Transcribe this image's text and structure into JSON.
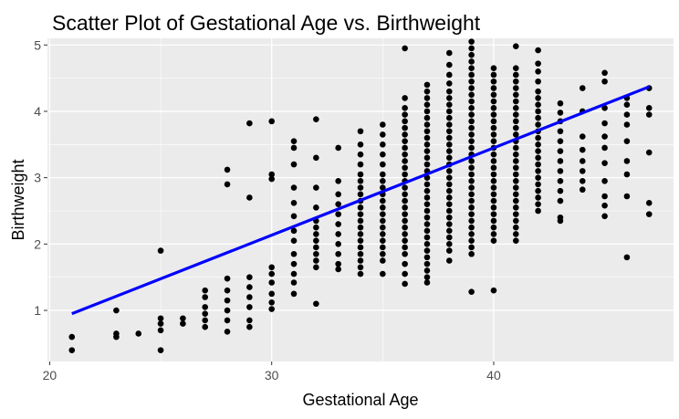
{
  "chart_data": {
    "type": "scatter",
    "title": "Scatter Plot of Gestational Age vs. Birthweight",
    "xlabel": "Gestational Age",
    "ylabel": "Birthweight",
    "xlim": [
      19.9,
      48.1
    ],
    "ylim": [
      0.23,
      5.1
    ],
    "xticks": [
      20,
      30,
      40
    ],
    "yticks": [
      1,
      2,
      3,
      4,
      5
    ],
    "grid": true,
    "panel_background": "#ebebeb",
    "grid_color": "#ffffff",
    "point_color": "#000000",
    "trend_color": "#0000ff",
    "trend_line": {
      "x": [
        21,
        47
      ],
      "y": [
        0.95,
        4.37
      ]
    },
    "points": [
      [
        21,
        0.6
      ],
      [
        21,
        0.4
      ],
      [
        23,
        1.0
      ],
      [
        23,
        0.65
      ],
      [
        23,
        0.6
      ],
      [
        24,
        0.65
      ],
      [
        25,
        1.9
      ],
      [
        25,
        0.88
      ],
      [
        25,
        0.8
      ],
      [
        25,
        0.7
      ],
      [
        25,
        0.4
      ],
      [
        26,
        0.88
      ],
      [
        26,
        0.8
      ],
      [
        27,
        1.3
      ],
      [
        27,
        1.2
      ],
      [
        27,
        1.05
      ],
      [
        27,
        0.95
      ],
      [
        27,
        0.85
      ],
      [
        27,
        0.75
      ],
      [
        28,
        3.12
      ],
      [
        28,
        2.9
      ],
      [
        28,
        1.48
      ],
      [
        28,
        1.3
      ],
      [
        28,
        1.15
      ],
      [
        28,
        1.0
      ],
      [
        28,
        0.85
      ],
      [
        28,
        0.68
      ],
      [
        29,
        3.82
      ],
      [
        29,
        2.7
      ],
      [
        29,
        1.5
      ],
      [
        29,
        1.35
      ],
      [
        29,
        1.2
      ],
      [
        29,
        1.05
      ],
      [
        29,
        0.85
      ],
      [
        29,
        0.75
      ],
      [
        30,
        3.85
      ],
      [
        30,
        3.05
      ],
      [
        30,
        2.98
      ],
      [
        30,
        1.65
      ],
      [
        30,
        1.55
      ],
      [
        30,
        1.42
      ],
      [
        30,
        1.25
      ],
      [
        30,
        1.12
      ],
      [
        30,
        1.02
      ],
      [
        31,
        3.55
      ],
      [
        31,
        3.45
      ],
      [
        31,
        3.2
      ],
      [
        31,
        2.85
      ],
      [
        31,
        2.62
      ],
      [
        31,
        2.42
      ],
      [
        31,
        2.2
      ],
      [
        31,
        2.05
      ],
      [
        31,
        1.85
      ],
      [
        31,
        1.7
      ],
      [
        31,
        1.55
      ],
      [
        31,
        1.42
      ],
      [
        31,
        1.25
      ],
      [
        32,
        3.88
      ],
      [
        32,
        3.3
      ],
      [
        32,
        2.85
      ],
      [
        32,
        2.55
      ],
      [
        32,
        2.35
      ],
      [
        32,
        2.25
      ],
      [
        32,
        2.15
      ],
      [
        32,
        2.05
      ],
      [
        32,
        1.95
      ],
      [
        32,
        1.85
      ],
      [
        32,
        1.75
      ],
      [
        32,
        1.65
      ],
      [
        32,
        1.1
      ],
      [
        33,
        3.45
      ],
      [
        33,
        2.95
      ],
      [
        33,
        2.75
      ],
      [
        33,
        2.6
      ],
      [
        33,
        2.45
      ],
      [
        33,
        2.3
      ],
      [
        33,
        2.15
      ],
      [
        33,
        2.0
      ],
      [
        33,
        1.85
      ],
      [
        33,
        1.7
      ],
      [
        33,
        1.62
      ],
      [
        34,
        3.7
      ],
      [
        34,
        3.5
      ],
      [
        34,
        3.35
      ],
      [
        34,
        3.2
      ],
      [
        34,
        3.05
      ],
      [
        34,
        2.95
      ],
      [
        34,
        2.85
      ],
      [
        34,
        2.75
      ],
      [
        34,
        2.65
      ],
      [
        34,
        2.55
      ],
      [
        34,
        2.45
      ],
      [
        34,
        2.35
      ],
      [
        34,
        2.25
      ],
      [
        34,
        2.15
      ],
      [
        34,
        2.05
      ],
      [
        34,
        1.95
      ],
      [
        34,
        1.85
      ],
      [
        34,
        1.75
      ],
      [
        34,
        1.65
      ],
      [
        34,
        1.55
      ],
      [
        35,
        3.8
      ],
      [
        35,
        3.65
      ],
      [
        35,
        3.5
      ],
      [
        35,
        3.35
      ],
      [
        35,
        3.2
      ],
      [
        35,
        3.05
      ],
      [
        35,
        2.95
      ],
      [
        35,
        2.85
      ],
      [
        35,
        2.75
      ],
      [
        35,
        2.65
      ],
      [
        35,
        2.55
      ],
      [
        35,
        2.45
      ],
      [
        35,
        2.35
      ],
      [
        35,
        2.25
      ],
      [
        35,
        2.15
      ],
      [
        35,
        2.05
      ],
      [
        35,
        1.95
      ],
      [
        35,
        1.85
      ],
      [
        35,
        1.75
      ],
      [
        35,
        1.55
      ],
      [
        36,
        4.2
      ],
      [
        36,
        4.05
      ],
      [
        36,
        3.95
      ],
      [
        36,
        3.85
      ],
      [
        36,
        3.75
      ],
      [
        36,
        3.65
      ],
      [
        36,
        3.55
      ],
      [
        36,
        3.45
      ],
      [
        36,
        3.35
      ],
      [
        36,
        3.25
      ],
      [
        36,
        3.15
      ],
      [
        36,
        3.05
      ],
      [
        36,
        2.95
      ],
      [
        36,
        2.85
      ],
      [
        36,
        2.75
      ],
      [
        36,
        2.65
      ],
      [
        36,
        2.55
      ],
      [
        36,
        2.45
      ],
      [
        36,
        2.35
      ],
      [
        36,
        2.25
      ],
      [
        36,
        2.15
      ],
      [
        36,
        2.05
      ],
      [
        36,
        1.95
      ],
      [
        36,
        1.85
      ],
      [
        36,
        1.7
      ],
      [
        36,
        1.55
      ],
      [
        36,
        1.4
      ],
      [
        36,
        4.95
      ],
      [
        37,
        4.4
      ],
      [
        37,
        4.3
      ],
      [
        37,
        4.2
      ],
      [
        37,
        4.1
      ],
      [
        37,
        4.0
      ],
      [
        37,
        3.9
      ],
      [
        37,
        3.8
      ],
      [
        37,
        3.7
      ],
      [
        37,
        3.6
      ],
      [
        37,
        3.5
      ],
      [
        37,
        3.4
      ],
      [
        37,
        3.3
      ],
      [
        37,
        3.2
      ],
      [
        37,
        3.1
      ],
      [
        37,
        3.0
      ],
      [
        37,
        2.9
      ],
      [
        37,
        2.8
      ],
      [
        37,
        2.7
      ],
      [
        37,
        2.6
      ],
      [
        37,
        2.5
      ],
      [
        37,
        2.4
      ],
      [
        37,
        2.3
      ],
      [
        37,
        2.2
      ],
      [
        37,
        2.1
      ],
      [
        37,
        2.0
      ],
      [
        37,
        1.9
      ],
      [
        37,
        1.8
      ],
      [
        37,
        1.7
      ],
      [
        37,
        1.6
      ],
      [
        37,
        1.5
      ],
      [
        37,
        1.42
      ],
      [
        38,
        4.88
      ],
      [
        38,
        4.7
      ],
      [
        38,
        4.55
      ],
      [
        38,
        4.42
      ],
      [
        38,
        4.3
      ],
      [
        38,
        4.2
      ],
      [
        38,
        4.1
      ],
      [
        38,
        4.0
      ],
      [
        38,
        3.9
      ],
      [
        38,
        3.8
      ],
      [
        38,
        3.7
      ],
      [
        38,
        3.6
      ],
      [
        38,
        3.5
      ],
      [
        38,
        3.4
      ],
      [
        38,
        3.3
      ],
      [
        38,
        3.2
      ],
      [
        38,
        3.1
      ],
      [
        38,
        3.0
      ],
      [
        38,
        2.9
      ],
      [
        38,
        2.8
      ],
      [
        38,
        2.7
      ],
      [
        38,
        2.6
      ],
      [
        38,
        2.5
      ],
      [
        38,
        2.4
      ],
      [
        38,
        2.3
      ],
      [
        38,
        2.2
      ],
      [
        38,
        2.1
      ],
      [
        38,
        2.0
      ],
      [
        38,
        1.9
      ],
      [
        38,
        1.75
      ],
      [
        39,
        5.05
      ],
      [
        39,
        4.95
      ],
      [
        39,
        4.85
      ],
      [
        39,
        4.75
      ],
      [
        39,
        4.65
      ],
      [
        39,
        4.55
      ],
      [
        39,
        4.45
      ],
      [
        39,
        4.35
      ],
      [
        39,
        4.25
      ],
      [
        39,
        4.15
      ],
      [
        39,
        4.05
      ],
      [
        39,
        3.95
      ],
      [
        39,
        3.85
      ],
      [
        39,
        3.75
      ],
      [
        39,
        3.65
      ],
      [
        39,
        3.55
      ],
      [
        39,
        3.45
      ],
      [
        39,
        3.35
      ],
      [
        39,
        3.25
      ],
      [
        39,
        3.15
      ],
      [
        39,
        3.05
      ],
      [
        39,
        2.95
      ],
      [
        39,
        2.85
      ],
      [
        39,
        2.75
      ],
      [
        39,
        2.65
      ],
      [
        39,
        2.55
      ],
      [
        39,
        2.45
      ],
      [
        39,
        2.35
      ],
      [
        39,
        2.25
      ],
      [
        39,
        2.15
      ],
      [
        39,
        2.05
      ],
      [
        39,
        1.95
      ],
      [
        39,
        1.85
      ],
      [
        39,
        1.28
      ],
      [
        40,
        4.65
      ],
      [
        40,
        4.55
      ],
      [
        40,
        4.45
      ],
      [
        40,
        4.35
      ],
      [
        40,
        4.25
      ],
      [
        40,
        4.15
      ],
      [
        40,
        4.05
      ],
      [
        40,
        3.95
      ],
      [
        40,
        3.85
      ],
      [
        40,
        3.75
      ],
      [
        40,
        3.65
      ],
      [
        40,
        3.55
      ],
      [
        40,
        3.45
      ],
      [
        40,
        3.35
      ],
      [
        40,
        3.25
      ],
      [
        40,
        3.15
      ],
      [
        40,
        3.05
      ],
      [
        40,
        2.95
      ],
      [
        40,
        2.85
      ],
      [
        40,
        2.75
      ],
      [
        40,
        2.65
      ],
      [
        40,
        2.55
      ],
      [
        40,
        2.45
      ],
      [
        40,
        2.35
      ],
      [
        40,
        2.25
      ],
      [
        40,
        2.15
      ],
      [
        40,
        2.05
      ],
      [
        40,
        1.3
      ],
      [
        41,
        4.98
      ],
      [
        41,
        4.65
      ],
      [
        41,
        4.55
      ],
      [
        41,
        4.45
      ],
      [
        41,
        4.35
      ],
      [
        41,
        4.25
      ],
      [
        41,
        4.15
      ],
      [
        41,
        4.05
      ],
      [
        41,
        3.95
      ],
      [
        41,
        3.85
      ],
      [
        41,
        3.75
      ],
      [
        41,
        3.65
      ],
      [
        41,
        3.55
      ],
      [
        41,
        3.45
      ],
      [
        41,
        3.35
      ],
      [
        41,
        3.25
      ],
      [
        41,
        3.15
      ],
      [
        41,
        3.05
      ],
      [
        41,
        2.95
      ],
      [
        41,
        2.85
      ],
      [
        41,
        2.75
      ],
      [
        41,
        2.65
      ],
      [
        41,
        2.55
      ],
      [
        41,
        2.45
      ],
      [
        41,
        2.35
      ],
      [
        41,
        2.25
      ],
      [
        41,
        2.15
      ],
      [
        41,
        2.05
      ],
      [
        42,
        4.92
      ],
      [
        42,
        4.72
      ],
      [
        42,
        4.6
      ],
      [
        42,
        4.45
      ],
      [
        42,
        4.3
      ],
      [
        42,
        4.2
      ],
      [
        42,
        4.1
      ],
      [
        42,
        4.0
      ],
      [
        42,
        3.9
      ],
      [
        42,
        3.8
      ],
      [
        42,
        3.7
      ],
      [
        42,
        3.6
      ],
      [
        42,
        3.5
      ],
      [
        42,
        3.4
      ],
      [
        42,
        3.3
      ],
      [
        42,
        3.2
      ],
      [
        42,
        3.1
      ],
      [
        42,
        3.0
      ],
      [
        42,
        2.9
      ],
      [
        42,
        2.8
      ],
      [
        42,
        2.7
      ],
      [
        42,
        2.6
      ],
      [
        42,
        2.5
      ],
      [
        43,
        4.12
      ],
      [
        43,
        3.98
      ],
      [
        43,
        3.85
      ],
      [
        43,
        3.7
      ],
      [
        43,
        3.55
      ],
      [
        43,
        3.4
      ],
      [
        43,
        3.25
      ],
      [
        43,
        3.1
      ],
      [
        43,
        2.95
      ],
      [
        43,
        2.8
      ],
      [
        43,
        2.65
      ],
      [
        43,
        2.4
      ],
      [
        43,
        2.35
      ],
      [
        44,
        4.35
      ],
      [
        44,
        4.0
      ],
      [
        44,
        3.62
      ],
      [
        44,
        3.42
      ],
      [
        44,
        3.25
      ],
      [
        44,
        3.1
      ],
      [
        44,
        2.95
      ],
      [
        44,
        2.82
      ],
      [
        45,
        4.58
      ],
      [
        45,
        4.45
      ],
      [
        45,
        4.05
      ],
      [
        45,
        3.82
      ],
      [
        45,
        3.62
      ],
      [
        45,
        3.45
      ],
      [
        45,
        3.22
      ],
      [
        45,
        2.95
      ],
      [
        45,
        2.72
      ],
      [
        45,
        2.58
      ],
      [
        45,
        2.42
      ],
      [
        46,
        4.2
      ],
      [
        46,
        4.1
      ],
      [
        46,
        3.95
      ],
      [
        46,
        3.8
      ],
      [
        46,
        3.55
      ],
      [
        46,
        3.25
      ],
      [
        46,
        3.05
      ],
      [
        46,
        2.72
      ],
      [
        46,
        1.8
      ],
      [
        47,
        4.35
      ],
      [
        47,
        4.05
      ],
      [
        47,
        3.95
      ],
      [
        47,
        3.38
      ],
      [
        47,
        2.62
      ],
      [
        47,
        2.45
      ]
    ]
  }
}
